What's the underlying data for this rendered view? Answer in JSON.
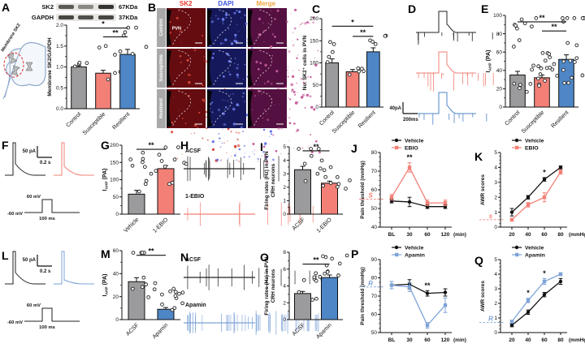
{
  "colors": {
    "control": "#9b9b9d",
    "susceptible": "#f28077",
    "resilient": "#4e86c6",
    "apamin": "#7da3d8",
    "vehicle": "#111111",
    "trace_black": "#222222",
    "sig": "#111111"
  },
  "panel_letters": {
    "a": "A",
    "b": "B",
    "c": "C",
    "d": "D",
    "e": "E",
    "f": "F",
    "g": "G",
    "h": "H",
    "i": "I",
    "j": "J",
    "k": "K",
    "l": "L",
    "m": "M",
    "n": "N",
    "o": "O",
    "p": "P",
    "q": "Q"
  },
  "panelA": {
    "blot_rows": [
      {
        "label": "SK2",
        "kda": "67KDa",
        "bands": [
          0.75,
          0.5,
          0.95
        ]
      },
      {
        "label": "GAPDH",
        "kda": "37KDa",
        "bands": [
          0.85,
          0.8,
          0.85
        ]
      }
    ],
    "schematic_label": "Membrane SK2"
  },
  "panelB": {
    "col_headers": [
      {
        "label": "SK2",
        "color": "#e8392c"
      },
      {
        "label": "DAPI",
        "color": "#3b52e0"
      },
      {
        "label": "Merge",
        "color": "#eda43b"
      }
    ],
    "row_labels": [
      "Control",
      "Susceptible",
      "Resilient"
    ],
    "region_label": "PVN",
    "cell_colors": [
      "#650c10",
      "#15195c",
      "#541040"
    ],
    "speckle_colors": [
      "#d4473a",
      "#6b7ce8",
      "#c85f9e"
    ]
  },
  "traces": {
    "D": {
      "scale_v": "40pA",
      "scale_h": "200ms",
      "rows": [
        {
          "color": "trace_black",
          "pre": 6,
          "post": 7,
          "depth": 7
        },
        {
          "color": "susceptible",
          "pre": 9,
          "post": 8,
          "depth": 10
        },
        {
          "color": "resilient",
          "pre": 4,
          "post": 5,
          "depth": 6
        }
      ]
    },
    "F": {
      "scale_v": "50 pA",
      "scale_h": "0.2 s",
      "v_high": "60 mV",
      "v_low": "-60 mV",
      "v_dur": "100 ms",
      "rows": [
        {
          "color": "trace_black",
          "tail": 14
        },
        {
          "color": "susceptible",
          "tail": 11
        }
      ]
    },
    "H": {
      "rows": [
        {
          "label": "ACSF",
          "color": "trace_black",
          "spikes": 16
        },
        {
          "label": "1-EBIO",
          "color": "susceptible",
          "spikes": 11
        }
      ]
    },
    "L": {
      "scale_v": "50 pA",
      "scale_h": "0.2 s",
      "v_high": "60 mV",
      "v_low": "-60 mV",
      "v_dur": "100 ms",
      "rows": [
        {
          "color": "trace_black",
          "tail": 14
        },
        {
          "color": "apamin",
          "tail": 5
        }
      ]
    },
    "N": {
      "rows": [
        {
          "label": "ACSF",
          "color": "trace_black",
          "spikes": 14
        },
        {
          "label": "Apamin",
          "color": "apamin",
          "spikes": 24
        }
      ]
    }
  },
  "chart_data": [
    {
      "panel": "A",
      "type": "bar",
      "ylabel": "Membrane SK2/GAPDH",
      "ylim": [
        0,
        2
      ],
      "yticks": [
        "0.0",
        "0.5",
        "1.0",
        "1.5",
        "2.0"
      ],
      "categories": [
        "Control",
        "Susceptible",
        "Resilient"
      ],
      "values": [
        1.0,
        0.85,
        1.3
      ],
      "errors": [
        0.03,
        0.07,
        0.12
      ],
      "bar_colors": [
        "control",
        "susceptible",
        "resilient"
      ],
      "n_points": [
        4,
        7,
        6
      ],
      "spread": [
        0.04,
        0.22,
        0.35
      ],
      "sig": [
        {
          "a": 0,
          "b": 2,
          "label": "*",
          "y": 1.93
        },
        {
          "a": 1,
          "b": 2,
          "label": "**",
          "y": 1.72
        }
      ]
    },
    {
      "panel": "C",
      "type": "bar",
      "ylabel": "No. SK2⁺ cells in PVN",
      "ylim": [
        0,
        200
      ],
      "yticks": [
        "0",
        "50",
        "100",
        "150",
        "200"
      ],
      "categories": [
        "Control",
        "Susceptible",
        "Resilient"
      ],
      "values": [
        100,
        80,
        125
      ],
      "errors": [
        9,
        5,
        9
      ],
      "bar_colors": [
        "control",
        "susceptible",
        "resilient"
      ],
      "n_points": [
        5,
        5,
        5
      ],
      "spread": [
        16,
        10,
        14
      ],
      "sig": [
        {
          "a": 0,
          "b": 2,
          "label": "*",
          "y": 183
        },
        {
          "a": 1,
          "b": 2,
          "label": "**",
          "y": 160
        }
      ]
    },
    {
      "panel": "E",
      "type": "bar",
      "ylabel": "I_AHP (PA)",
      "ylim": [
        0,
        100
      ],
      "yticks": [
        "0",
        "20",
        "40",
        "60",
        "80",
        "100"
      ],
      "categories": [
        "Control",
        "Susceptible",
        "Resilient"
      ],
      "values": [
        35,
        32,
        52
      ],
      "errors": [
        4,
        3,
        5
      ],
      "bar_colors": [
        "control",
        "susceptible",
        "resilient"
      ],
      "n_points": [
        16,
        17,
        18
      ],
      "spread": [
        22,
        9,
        26
      ],
      "sig": [
        {
          "a": 0,
          "b": 2,
          "label": "**",
          "y": 93
        },
        {
          "a": 1,
          "b": 2,
          "label": "**",
          "y": 83
        }
      ]
    },
    {
      "panel": "G",
      "type": "bar",
      "ylabel": "I_AHP (PA)",
      "ylim": [
        0,
        200
      ],
      "yticks": [
        "0",
        "50",
        "100",
        "150",
        "200"
      ],
      "categories": [
        "Vehicle",
        "1-EBIO"
      ],
      "values": [
        58,
        132
      ],
      "errors": [
        11,
        9
      ],
      "bar_colors": [
        "control",
        "susceptible"
      ],
      "n_points": [
        11,
        10
      ],
      "spread": [
        42,
        48
      ],
      "sig": [
        {
          "a": 0,
          "b": 1,
          "label": "**",
          "y": 188
        }
      ]
    },
    {
      "panel": "I",
      "type": "bar",
      "ylabel": [
        "Firing rates (Hz) in PVN",
        "CRH neurons"
      ],
      "ylim": [
        0,
        5
      ],
      "yticks": [
        "0",
        "1",
        "2",
        "3",
        "4",
        "5"
      ],
      "categories": [
        "ACSF",
        "1-EBIO"
      ],
      "values": [
        3.3,
        2.3
      ],
      "errors": [
        0.25,
        0.15
      ],
      "bar_colors": [
        "control",
        "susceptible"
      ],
      "n_points": [
        9,
        10
      ],
      "spread": [
        0.85,
        0.45
      ],
      "sig": [
        {
          "a": 0,
          "b": 1,
          "label": "**",
          "y": 4.7
        }
      ]
    },
    {
      "panel": "M",
      "type": "bar",
      "ylabel": "I_AHP (PA)",
      "ylim": [
        0,
        60
      ],
      "yticks": [
        "0",
        "20",
        "40",
        "60"
      ],
      "categories": [
        "ACSF",
        "Apamin"
      ],
      "values": [
        33,
        9
      ],
      "errors": [
        3.5,
        1.5
      ],
      "bar_colors": [
        "control",
        "resilient"
      ],
      "n_points": [
        11,
        12
      ],
      "spread": [
        17,
        6
      ],
      "sig": [
        {
          "a": 0,
          "b": 1,
          "label": "**",
          "y": 56
        }
      ]
    },
    {
      "panel": "O",
      "type": "bar",
      "ylabel": [
        "Firing rates (Hz) in PVN",
        "CRH neurons"
      ],
      "ylim": [
        0,
        8
      ],
      "yticks": [
        "0",
        "2",
        "4",
        "6",
        "8"
      ],
      "categories": [
        "ACSF",
        "Apamin"
      ],
      "values": [
        3.1,
        5.0
      ],
      "errors": [
        0.25,
        0.3
      ],
      "bar_colors": [
        "control",
        "resilient"
      ],
      "n_points": [
        10,
        10
      ],
      "spread": [
        0.9,
        0.9
      ],
      "sig": [
        {
          "a": 0,
          "b": 1,
          "label": "**",
          "y": 6.6
        }
      ]
    },
    {
      "panel": "J",
      "type": "line",
      "ylabel": "Pain threshold (mmHg)",
      "ylim": [
        40,
        80
      ],
      "yticks": [
        "40",
        "50",
        "60",
        "70",
        "80"
      ],
      "x": [
        "BL",
        "30",
        "60",
        "120"
      ],
      "xunit": "(min)",
      "series": [
        {
          "name": "Vehicle",
          "color": "vehicle",
          "marker": "circle",
          "values": [
            54,
            53.5,
            51,
            51
          ],
          "errors": [
            1,
            2.5,
            1,
            1
          ]
        },
        {
          "name": "EBIO",
          "color": "susceptible",
          "marker": "square",
          "values": [
            56,
            72,
            53,
            53
          ],
          "errors": [
            1.5,
            2.5,
            1.5,
            1.5
          ]
        }
      ],
      "sig": [
        {
          "i": 1,
          "series": 1,
          "label": "**"
        }
      ],
      "side_marker": {
        "label": "S",
        "color": "susceptible",
        "y": 55
      }
    },
    {
      "panel": "K",
      "type": "line",
      "ylabel": "AWR scores",
      "ylim": [
        0,
        5
      ],
      "yticks": [
        "0",
        "1",
        "2",
        "3",
        "4",
        "5"
      ],
      "x": [
        "20",
        "40",
        "60",
        "80"
      ],
      "xunit": "(mmHg)",
      "series": [
        {
          "name": "Vehicle",
          "color": "vehicle",
          "marker": "circle",
          "values": [
            1.0,
            2.0,
            3.2,
            4.0
          ],
          "errors": [
            0.25,
            0.12,
            0.12,
            0.1
          ]
        },
        {
          "name": "EBIO",
          "color": "susceptible",
          "marker": "square",
          "values": [
            0.5,
            1.5,
            2.0,
            3.7
          ],
          "errors": [
            0.1,
            0.15,
            0.3,
            0.15
          ]
        }
      ],
      "sig": [
        {
          "i": 2,
          "series": 0,
          "label": "*"
        }
      ],
      "side_marker": {
        "label": "s",
        "color": "susceptible",
        "y": 0.5
      }
    },
    {
      "panel": "P",
      "type": "line",
      "ylabel": "Pain threshold (mmHg)",
      "ylim": [
        50,
        90
      ],
      "yticks": [
        "50",
        "60",
        "70",
        "80",
        "90"
      ],
      "x": [
        "BL",
        "30",
        "60",
        "120"
      ],
      "xunit": "(min)",
      "series": [
        {
          "name": "Vehicle",
          "color": "vehicle",
          "marker": "circle",
          "values": [
            76,
            76.5,
            71.5,
            72
          ],
          "errors": [
            2,
            2.5,
            1.5,
            2
          ]
        },
        {
          "name": "Apamin",
          "color": "apamin",
          "marker": "square",
          "values": [
            76,
            75,
            54,
            65
          ],
          "errors": [
            2,
            2.5,
            1.5,
            4
          ]
        }
      ],
      "sig": [
        {
          "i": 2,
          "series": 0,
          "label": "**"
        }
      ],
      "side_marker": {
        "label": "R",
        "color": "apamin",
        "y": 75
      }
    },
    {
      "panel": "Q",
      "type": "line",
      "ylabel": "AWR scores",
      "ylim": [
        0,
        5
      ],
      "yticks": [
        "0",
        "1",
        "2",
        "3",
        "4",
        "5"
      ],
      "x": [
        "20",
        "40",
        "60",
        "80"
      ],
      "xunit": "(mmHg)",
      "series": [
        {
          "name": "Vehicle",
          "color": "vehicle",
          "marker": "circle",
          "values": [
            0.5,
            1.4,
            2.6,
            3.5
          ],
          "errors": [
            0.1,
            0.15,
            0.15,
            0.2
          ]
        },
        {
          "name": "Apamin",
          "color": "apamin",
          "marker": "square",
          "values": [
            0.75,
            2.2,
            3.5,
            4.0
          ],
          "errors": [
            0.1,
            0.15,
            0.2,
            0.1
          ]
        }
      ],
      "sig": [
        {
          "i": 1,
          "series": 1,
          "label": "*"
        },
        {
          "i": 2,
          "series": 1,
          "label": "*"
        }
      ],
      "side_marker": {
        "label": "R",
        "color": "apamin",
        "y": 0.7
      }
    }
  ]
}
